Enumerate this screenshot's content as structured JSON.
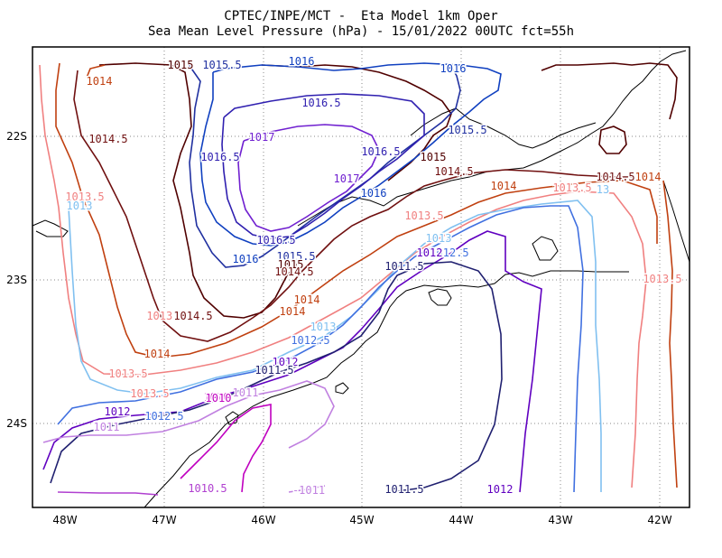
{
  "title": {
    "line1": "CPTEC/INPE/MCT -  Eta Model 1km Oper",
    "line2": "Sea Mean Level Pressure (hPa) - 15/01/2022 00UTC fct=55h"
  },
  "axes": {
    "lon_labels": [
      "48W",
      "47W",
      "46W",
      "45W",
      "44W",
      "43W",
      "42W"
    ],
    "lat_labels": [
      "22S",
      "23S",
      "24S"
    ]
  },
  "colors": {
    "c1010": "#c000c0",
    "c1010_5": "#b040d0",
    "c1011": "#c080e0",
    "c1011_5": "#202070",
    "c1012": "#6000c0",
    "c1012_5": "#4070e0",
    "c1013": "#80c0f0",
    "c1013_5": "#f08080",
    "c1014": "#c04010",
    "c1014_5": "#701010",
    "c1015": "#500000",
    "c1015_5": "#2030a0",
    "c1016": "#1040c0",
    "c1016_5": "#3020b0",
    "c1017": "#7020d0",
    "coast": "#000000",
    "grid": "#888888"
  },
  "contour_labels": [
    {
      "text": "1011",
      "key": "c1011"
    },
    {
      "text": "1010",
      "key": "c1010"
    },
    {
      "text": "1014",
      "key": "c1014"
    },
    {
      "text": "1015.5",
      "key": "c1015_5"
    },
    {
      "text": "1016",
      "key": "c1016"
    },
    {
      "text": "1015",
      "key": "c1015"
    },
    {
      "text": "1016",
      "key": "c1016"
    },
    {
      "text": "1016.5",
      "key": "c1016_5"
    },
    {
      "text": "1014.5",
      "key": "c1014_5"
    },
    {
      "text": "1017",
      "key": "c1017"
    },
    {
      "text": "1015.5",
      "key": "c1015_5"
    },
    {
      "text": "1016.5",
      "key": "c1016_5"
    },
    {
      "text": "1016.5",
      "key": "c1016_5"
    },
    {
      "text": "1017",
      "key": "c1017"
    },
    {
      "text": "1015",
      "key": "c1015"
    },
    {
      "text": "1016",
      "key": "c1016"
    },
    {
      "text": "1014.5",
      "key": "c1014_5"
    },
    {
      "text": "1014",
      "key": "c1014"
    },
    {
      "text": "1013.5",
      "key": "c1013_5"
    },
    {
      "text": "1014.5",
      "key": "c1014_5"
    },
    {
      "text": "1014",
      "key": "c1014"
    },
    {
      "text": "13",
      "key": "c1013"
    },
    {
      "text": "1013.5",
      "key": "c1013_5"
    },
    {
      "text": "1013",
      "key": "c1013"
    },
    {
      "text": "1013.5",
      "key": "c1013_5"
    },
    {
      "text": "1016.5",
      "key": "c1016_5"
    },
    {
      "text": "1016",
      "key": "c1016"
    },
    {
      "text": "1015.5",
      "key": "c1015_5"
    },
    {
      "text": "1015",
      "key": "c1015"
    },
    {
      "text": "1014.5",
      "key": "c1014_5"
    },
    {
      "text": "1013",
      "key": "c1013"
    },
    {
      "text": "1012.5",
      "key": "c1012_5"
    },
    {
      "text": "1011.5",
      "key": "c1011_5"
    },
    {
      "text": "1012",
      "key": "c1012"
    },
    {
      "text": "1013.5",
      "key": "c1013_5"
    },
    {
      "text": "1014",
      "key": "c1014"
    },
    {
      "text": "1014",
      "key": "c1014"
    },
    {
      "text": "1013.5",
      "key": "c1013_5"
    },
    {
      "text": "1014.5",
      "key": "c1014_5"
    },
    {
      "text": "1013",
      "key": "c1013"
    },
    {
      "text": "1012.5",
      "key": "c1012_5"
    },
    {
      "text": "1014",
      "key": "c1014"
    },
    {
      "text": "1013.5",
      "key": "c1013_5"
    },
    {
      "text": "1012",
      "key": "c1012"
    },
    {
      "text": "1011.5",
      "key": "c1011_5"
    },
    {
      "text": "1013.5",
      "key": "c1013_5"
    },
    {
      "text": "1011",
      "key": "c1011"
    },
    {
      "text": "1010",
      "key": "c1010"
    },
    {
      "text": "1012.5",
      "key": "c1012_5"
    },
    {
      "text": "1012",
      "key": "c1012"
    },
    {
      "text": "1011",
      "key": "c1011"
    },
    {
      "text": "1010.5",
      "key": "c1010_5"
    },
    {
      "text": "-1011",
      "key": "c1011"
    },
    {
      "text": "1011.5",
      "key": "c1011_5"
    },
    {
      "text": "1012",
      "key": "c1012"
    }
  ]
}
